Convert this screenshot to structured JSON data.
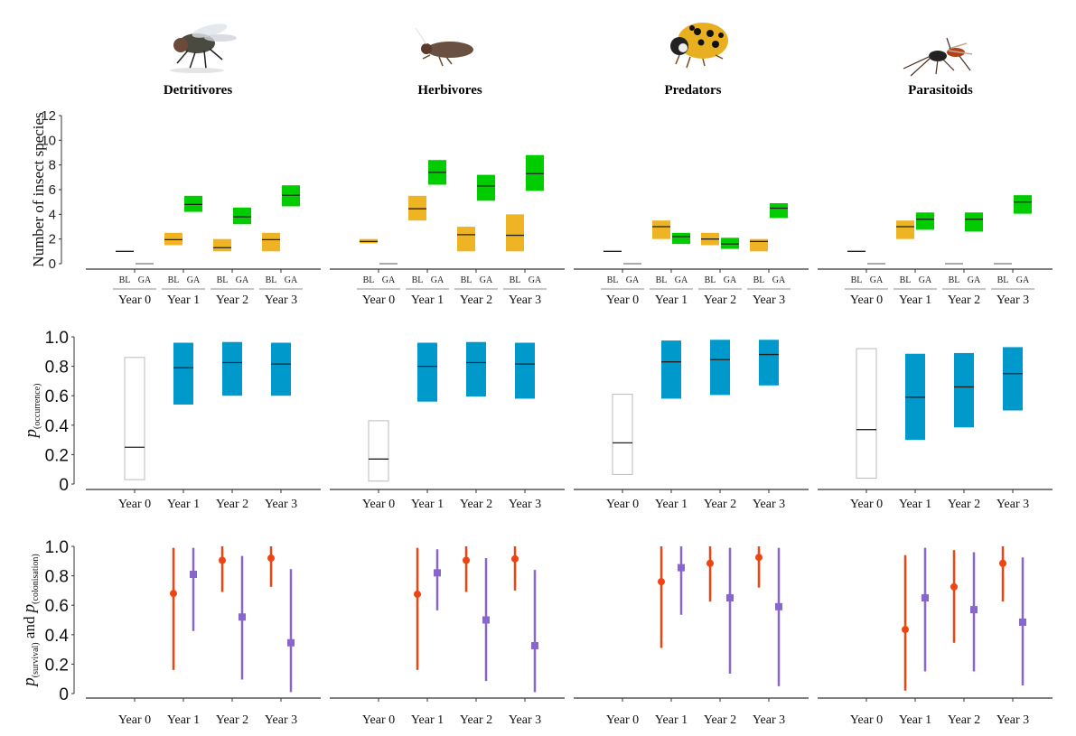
{
  "figure": {
    "columns": [
      {
        "title": "Detritivores",
        "icon": "fly-icon"
      },
      {
        "title": "Herbivores",
        "icon": "leafhopper-icon"
      },
      {
        "title": "Predators",
        "icon": "ladybird-icon"
      },
      {
        "title": "Parasitoids",
        "icon": "wasp-icon"
      }
    ],
    "colors": {
      "BL": "#EEB424",
      "GA": "#00CC00",
      "occurrence": "#0099CC",
      "survival": "#EE4411",
      "colonisation": "#8866CC",
      "empty_box": "#BBBBBB",
      "median": "#222222"
    }
  },
  "chart_data": [
    {
      "type": "box-range",
      "row": "species richness",
      "ylabel": "Number of insect species",
      "ylim": [
        0,
        12
      ],
      "yticks": [
        0,
        2,
        4,
        6,
        8,
        10,
        12
      ],
      "categories": [
        "Year 0",
        "Year 1",
        "Year 2",
        "Year 3"
      ],
      "subcategories": [
        "BL",
        "GA"
      ],
      "panels": [
        {
          "group": "Detritivores",
          "series": {
            "BL": [
              {
                "median": 1.0,
                "low": 1.0,
                "high": 1.0
              },
              {
                "median": 1.95,
                "low": 1.5,
                "high": 2.5
              },
              {
                "median": 1.3,
                "low": 1.0,
                "high": 2.0
              },
              {
                "median": 1.95,
                "low": 1.0,
                "high": 2.5
              }
            ],
            "GA": [
              {
                "median": 0,
                "low": 0,
                "high": 0
              },
              {
                "median": 4.8,
                "low": 4.2,
                "high": 5.5
              },
              {
                "median": 3.8,
                "low": 3.2,
                "high": 4.55
              },
              {
                "median": 5.55,
                "low": 4.65,
                "high": 6.35
              }
            ]
          }
        },
        {
          "group": "Herbivores",
          "series": {
            "BL": [
              {
                "median": 1.8,
                "low": 1.65,
                "high": 2.0
              },
              {
                "median": 4.45,
                "low": 3.5,
                "high": 5.5
              },
              {
                "median": 2.35,
                "low": 1.0,
                "high": 3.0
              },
              {
                "median": 2.3,
                "low": 1.0,
                "high": 4.0
              }
            ],
            "GA": [
              {
                "median": 0,
                "low": 0,
                "high": 0
              },
              {
                "median": 7.4,
                "low": 6.4,
                "high": 8.4
              },
              {
                "median": 6.3,
                "low": 5.1,
                "high": 7.2
              },
              {
                "median": 7.3,
                "low": 5.9,
                "high": 8.8
              }
            ]
          }
        },
        {
          "group": "Predators",
          "series": {
            "BL": [
              {
                "median": 1.0,
                "low": 1.0,
                "high": 1.0
              },
              {
                "median": 3.0,
                "low": 2.0,
                "high": 3.5
              },
              {
                "median": 2.0,
                "low": 1.5,
                "high": 2.5
              },
              {
                "median": 1.8,
                "low": 1.0,
                "high": 2.0
              }
            ],
            "GA": [
              {
                "median": 0,
                "low": 0,
                "high": 0
              },
              {
                "median": 2.2,
                "low": 1.6,
                "high": 2.5
              },
              {
                "median": 1.6,
                "low": 1.2,
                "high": 2.1
              },
              {
                "median": 4.5,
                "low": 3.7,
                "high": 4.9
              }
            ]
          }
        },
        {
          "group": "Parasitoids",
          "series": {
            "BL": [
              {
                "median": 1.0,
                "low": 1.0,
                "high": 1.0
              },
              {
                "median": 3.0,
                "low": 2.0,
                "high": 3.5
              },
              {
                "median": 0,
                "low": 0,
                "high": 0
              },
              {
                "median": 0,
                "low": 0,
                "high": 0
              }
            ],
            "GA": [
              {
                "median": 0,
                "low": 0,
                "high": 0
              },
              {
                "median": 3.6,
                "low": 2.75,
                "high": 4.15
              },
              {
                "median": 3.6,
                "low": 2.6,
                "high": 4.15
              },
              {
                "median": 5.0,
                "low": 4.05,
                "high": 5.55
              }
            ]
          }
        }
      ]
    },
    {
      "type": "box-range",
      "row": "occurrence",
      "ylabel_main": "p",
      "ylabel_sub": "(occurrence)",
      "ylim": [
        0,
        1
      ],
      "yticks": [
        0,
        0.2,
        0.4,
        0.6,
        0.8,
        1.0
      ],
      "ytick_labels": [
        "0",
        "0.2",
        "0.4",
        "0.6",
        "0.8",
        "1.0"
      ],
      "categories": [
        "Year 0",
        "Year 1",
        "Year 2",
        "Year 3"
      ],
      "panels": [
        {
          "group": "Detritivores",
          "values": [
            {
              "median": 0.25,
              "low": 0.03,
              "high": 0.86,
              "empty": true
            },
            {
              "median": 0.79,
              "low": 0.54,
              "high": 0.96
            },
            {
              "median": 0.825,
              "low": 0.6,
              "high": 0.965
            },
            {
              "median": 0.815,
              "low": 0.6,
              "high": 0.96
            }
          ]
        },
        {
          "group": "Herbivores",
          "values": [
            {
              "median": 0.17,
              "low": 0.02,
              "high": 0.43,
              "empty": true
            },
            {
              "median": 0.8,
              "low": 0.56,
              "high": 0.96
            },
            {
              "median": 0.825,
              "low": 0.595,
              "high": 0.965
            },
            {
              "median": 0.815,
              "low": 0.58,
              "high": 0.96
            }
          ]
        },
        {
          "group": "Predators",
          "values": [
            {
              "median": 0.28,
              "low": 0.065,
              "high": 0.61,
              "empty": true
            },
            {
              "median": 0.83,
              "low": 0.58,
              "high": 0.975
            },
            {
              "median": 0.845,
              "low": 0.605,
              "high": 0.98
            },
            {
              "median": 0.88,
              "low": 0.67,
              "high": 0.98
            }
          ]
        },
        {
          "group": "Parasitoids",
          "values": [
            {
              "median": 0.37,
              "low": 0.04,
              "high": 0.92,
              "empty": true
            },
            {
              "median": 0.59,
              "low": 0.3,
              "high": 0.885
            },
            {
              "median": 0.66,
              "low": 0.385,
              "high": 0.89
            },
            {
              "median": 0.75,
              "low": 0.5,
              "high": 0.93
            }
          ]
        }
      ]
    },
    {
      "type": "errorbar",
      "row": "survival-colonisation",
      "ylabel_parts": [
        "p",
        "(survival)",
        " and ",
        "p",
        "(colonisation)"
      ],
      "ylim": [
        0,
        1
      ],
      "yticks": [
        0,
        0.2,
        0.4,
        0.6,
        0.8,
        1.0
      ],
      "ytick_labels": [
        "0",
        "0.2",
        "0.4",
        "0.6",
        "0.8",
        "1.0"
      ],
      "categories": [
        "Year 0",
        "Year 1",
        "Year 2",
        "Year 3"
      ],
      "legend": [
        "survival (circle)",
        "colonisation (square)"
      ],
      "panels": [
        {
          "group": "Detritivores",
          "survival": [
            null,
            {
              "mean": 0.68,
              "low": 0.16,
              "high": 0.99
            },
            {
              "mean": 0.905,
              "low": 0.69,
              "high": 1.0
            },
            {
              "mean": 0.92,
              "low": 0.725,
              "high": 1.0
            }
          ],
          "colonisation": [
            null,
            {
              "mean": 0.81,
              "low": 0.425,
              "high": 0.99
            },
            {
              "mean": 0.52,
              "low": 0.095,
              "high": 0.935
            },
            {
              "mean": 0.345,
              "low": 0.01,
              "high": 0.845
            }
          ]
        },
        {
          "group": "Herbivores",
          "survival": [
            null,
            {
              "mean": 0.675,
              "low": 0.16,
              "high": 0.99
            },
            {
              "mean": 0.905,
              "low": 0.69,
              "high": 1.0
            },
            {
              "mean": 0.915,
              "low": 0.7,
              "high": 1.0
            }
          ],
          "colonisation": [
            null,
            {
              "mean": 0.82,
              "low": 0.565,
              "high": 0.98
            },
            {
              "mean": 0.5,
              "low": 0.085,
              "high": 0.92
            },
            {
              "mean": 0.325,
              "low": 0.01,
              "high": 0.84
            }
          ]
        },
        {
          "group": "Predators",
          "survival": [
            null,
            {
              "mean": 0.76,
              "low": 0.31,
              "high": 1.0
            },
            {
              "mean": 0.885,
              "low": 0.625,
              "high": 1.0
            },
            {
              "mean": 0.925,
              "low": 0.72,
              "high": 1.0
            }
          ],
          "colonisation": [
            null,
            {
              "mean": 0.855,
              "low": 0.535,
              "high": 1.0
            },
            {
              "mean": 0.65,
              "low": 0.135,
              "high": 0.99
            },
            {
              "mean": 0.59,
              "low": 0.05,
              "high": 0.99
            }
          ]
        },
        {
          "group": "Parasitoids",
          "survival": [
            null,
            {
              "mean": 0.435,
              "low": 0.02,
              "high": 0.94
            },
            {
              "mean": 0.725,
              "low": 0.345,
              "high": 0.975
            },
            {
              "mean": 0.885,
              "low": 0.625,
              "high": 1.0
            }
          ],
          "colonisation": [
            null,
            {
              "mean": 0.65,
              "low": 0.15,
              "high": 0.99
            },
            {
              "mean": 0.57,
              "low": 0.15,
              "high": 0.96
            },
            {
              "mean": 0.485,
              "low": 0.055,
              "high": 0.925
            }
          ]
        }
      ]
    }
  ]
}
